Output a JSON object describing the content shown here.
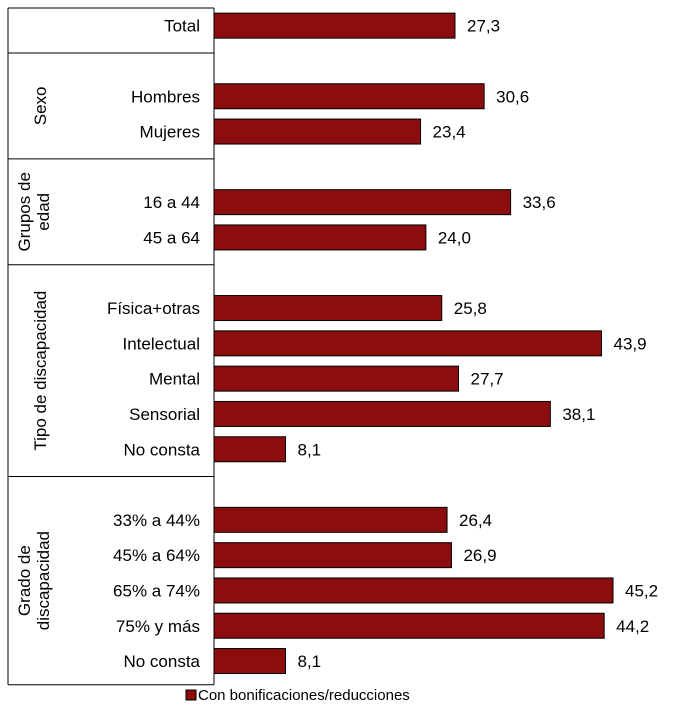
{
  "chart_data": {
    "type": "bar",
    "orientation": "horizontal",
    "bar_color": "#8B0D0D",
    "series": [
      {
        "name": "Con bonificaciones/reducciones"
      }
    ],
    "groups": [
      {
        "label_lines": [],
        "items": [
          {
            "category": "Total",
            "value": 27.3,
            "value_label": "27,3"
          }
        ]
      },
      {
        "label_lines": [
          "Sexo"
        ],
        "items": [
          {
            "category": "Hombres",
            "value": 30.6,
            "value_label": "30,6"
          },
          {
            "category": "Mujeres",
            "value": 23.4,
            "value_label": "23,4"
          }
        ]
      },
      {
        "label_lines": [
          "Grupos de",
          "edad"
        ],
        "items": [
          {
            "category": "16 a 44",
            "value": 33.6,
            "value_label": "33,6"
          },
          {
            "category": "45 a 64",
            "value": 24.0,
            "value_label": "24,0"
          }
        ]
      },
      {
        "label_lines": [
          "Tipo de discapacidad"
        ],
        "items": [
          {
            "category": "Física+otras",
            "value": 25.8,
            "value_label": "25,8"
          },
          {
            "category": "Intelectual",
            "value": 43.9,
            "value_label": "43,9"
          },
          {
            "category": "Mental",
            "value": 27.7,
            "value_label": "27,7"
          },
          {
            "category": "Sensorial",
            "value": 38.1,
            "value_label": "38,1"
          },
          {
            "category": "No consta",
            "value": 8.1,
            "value_label": "8,1"
          }
        ]
      },
      {
        "label_lines": [
          "Grado de",
          "discapacidad"
        ],
        "items": [
          {
            "category": "33% a 44%",
            "value": 26.4,
            "value_label": "26,4"
          },
          {
            "category": "45% a 64%",
            "value": 26.9,
            "value_label": "26,9"
          },
          {
            "category": "65% a 74%",
            "value": 45.2,
            "value_label": "45,2"
          },
          {
            "category": "75% y más",
            "value": 44.2,
            "value_label": "44,2"
          },
          {
            "category": "No consta",
            "value": 8.1,
            "value_label": "8,1"
          }
        ]
      }
    ],
    "xlim": [
      0,
      45.2
    ],
    "grid": false,
    "legend": "bottom"
  }
}
